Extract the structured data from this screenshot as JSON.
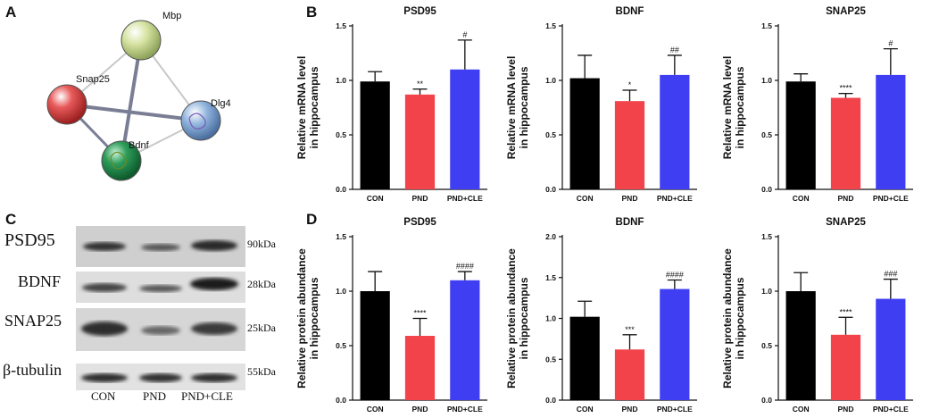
{
  "panels": {
    "a": "A",
    "b": "B",
    "c": "C",
    "d": "D"
  },
  "network": {
    "nodes": [
      {
        "label": "Mbp",
        "color": "#d4e3a0"
      },
      {
        "label": "Snap25",
        "color": "#e85a5a"
      },
      {
        "label": "Dlg4",
        "color": "#8fb3dc"
      },
      {
        "label": "Bdnf",
        "color": "#2e9d5a"
      }
    ]
  },
  "blots": {
    "rows": [
      {
        "protein": "PSD95",
        "size": "90kDa"
      },
      {
        "protein": "BDNF",
        "size": "28kDa"
      },
      {
        "protein": "SNAP25",
        "size": "25kDa"
      },
      {
        "protein": "β-tubulin",
        "size": "55kDa"
      }
    ],
    "lanes": [
      "CON",
      "PND",
      "PND+CLE"
    ]
  },
  "colors": {
    "con": "#000000",
    "pnd": "#f2434a",
    "pndcle": "#3f3ef2"
  },
  "chart_data": [
    {
      "type": "bar",
      "title": "PSD95",
      "ylabel": [
        "Relative mRNA level",
        "in hippocampus"
      ],
      "categories": [
        "CON",
        "PND",
        "PND+CLE"
      ],
      "values": [
        0.99,
        0.87,
        1.1
      ],
      "errors": [
        0.09,
        0.05,
        0.27
      ],
      "significance": [
        "",
        "**",
        "#"
      ],
      "ylim": [
        0,
        1.5
      ],
      "yticks": [
        "0.0",
        "0.5",
        "1.0",
        "1.5"
      ]
    },
    {
      "type": "bar",
      "title": "BDNF",
      "ylabel": [
        "Relative mRNA level",
        "in hippocampus"
      ],
      "categories": [
        "CON",
        "PND",
        "PND+CLE"
      ],
      "values": [
        1.02,
        0.81,
        1.05
      ],
      "errors": [
        0.21,
        0.1,
        0.18
      ],
      "significance": [
        "",
        "*",
        "##"
      ],
      "ylim": [
        0,
        1.5
      ],
      "yticks": [
        "0.0",
        "0.5",
        "1.0",
        "1.5"
      ]
    },
    {
      "type": "bar",
      "title": "SNAP25",
      "ylabel": [
        "Relative mRNA level",
        "in hippocampus"
      ],
      "categories": [
        "CON",
        "PND",
        "PND+CLE"
      ],
      "values": [
        0.99,
        0.84,
        1.05
      ],
      "errors": [
        0.07,
        0.04,
        0.24
      ],
      "significance": [
        "",
        "****",
        "#"
      ],
      "ylim": [
        0,
        1.5
      ],
      "yticks": [
        "0.0",
        "0.5",
        "1.0",
        "1.5"
      ]
    },
    {
      "type": "bar",
      "title": "PSD95",
      "ylabel": [
        "Relative protein abundance",
        "in hippocampus"
      ],
      "categories": [
        "CON",
        "PND",
        "PND+CLE"
      ],
      "values": [
        1.0,
        0.59,
        1.1
      ],
      "errors": [
        0.18,
        0.16,
        0.08
      ],
      "significance": [
        "",
        "****",
        "####"
      ],
      "ylim": [
        0,
        1.5
      ],
      "yticks": [
        "0.0",
        "0.5",
        "1.0",
        "1.5"
      ]
    },
    {
      "type": "bar",
      "title": "BDNF",
      "ylabel": [
        "Relative protein abundance",
        "in hippocampus"
      ],
      "categories": [
        "CON",
        "PND",
        "PND+CLE"
      ],
      "values": [
        1.02,
        0.62,
        1.36
      ],
      "errors": [
        0.19,
        0.18,
        0.11
      ],
      "significance": [
        "",
        "***",
        "####"
      ],
      "ylim": [
        0,
        2.0
      ],
      "yticks": [
        "0.0",
        "0.5",
        "1.0",
        "1.5",
        "2.0"
      ]
    },
    {
      "type": "bar",
      "title": "SNAP25",
      "ylabel": [
        "Relative protein abundance",
        "in hippocampus"
      ],
      "categories": [
        "CON",
        "PND",
        "PND+CLE"
      ],
      "values": [
        1.0,
        0.6,
        0.93
      ],
      "errors": [
        0.17,
        0.16,
        0.18
      ],
      "significance": [
        "",
        "****",
        "###"
      ],
      "ylim": [
        0,
        1.5
      ],
      "yticks": [
        "0.0",
        "0.5",
        "1.0",
        "1.5"
      ]
    }
  ]
}
